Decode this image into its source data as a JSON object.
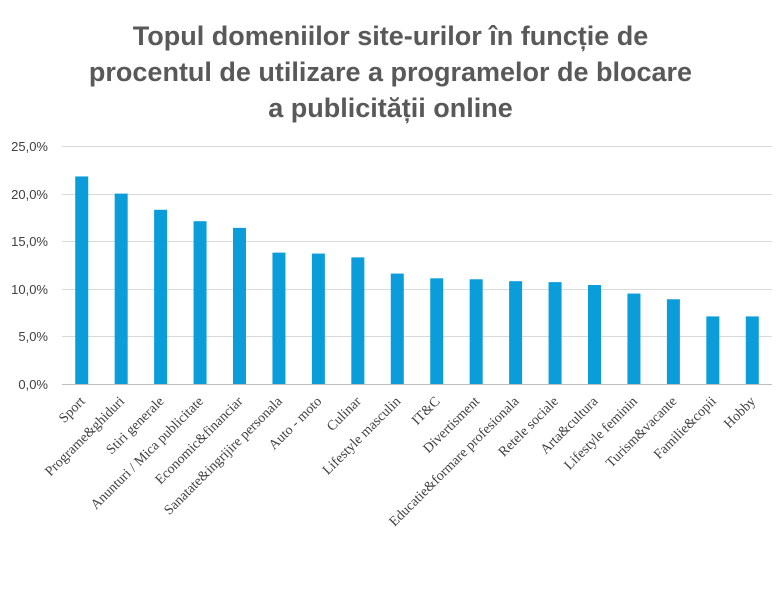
{
  "chart_data": {
    "type": "bar",
    "title_lines": [
      "Topul domeniilor site-urilor în funcție de",
      "procentul de utilizare a programelor de blocare",
      "a publicității online"
    ],
    "xlabel": "",
    "ylabel": "",
    "categories": [
      "Sport",
      "Programe&ghiduri",
      "Stiri generale",
      "Anunturi / Mica publicitate",
      "Economic&financiar",
      "Sanatate&ingrijire personala",
      "Auto - moto",
      "Culinar",
      "Lifestyle masculin",
      "IT&C",
      "Divertisment",
      "Educatie&formare profesionala",
      "Retele sociale",
      "Arta&cultura",
      "Lifestyle feminin",
      "Turism&vacante",
      "Familie&copii",
      "Hobby"
    ],
    "values": [
      21.8,
      20.0,
      18.3,
      17.1,
      16.4,
      13.8,
      13.7,
      13.3,
      11.6,
      11.1,
      11.0,
      10.8,
      10.7,
      10.4,
      9.5,
      8.9,
      7.1,
      7.1
    ],
    "ylim": [
      0,
      25
    ],
    "yticks": [
      0,
      5,
      10,
      15,
      20,
      25
    ],
    "ytick_labels": [
      "0,0%",
      "5,0%",
      "10,0%",
      "15,0%",
      "20,0%",
      "25,0%"
    ],
    "grid": true,
    "legend": "none",
    "colors": {
      "bar": "#0B9DD9",
      "grid": "#D9D9D9",
      "axis": "#BFBFBF",
      "title": "#595959"
    }
  }
}
